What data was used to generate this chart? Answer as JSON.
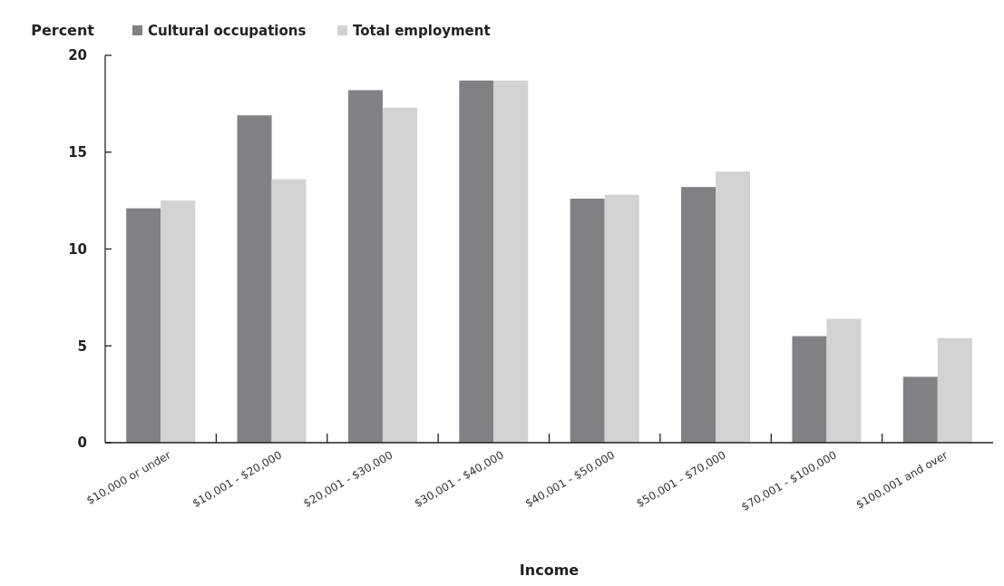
{
  "chart_data": {
    "type": "bar",
    "xlabel": "Income",
    "ylabel": "Percent",
    "categories": [
      "$10,000 or under",
      "$10,001 - $20,000",
      "$20,001 - $30,000",
      "$30,001 - $40,000",
      "$40,001 - $50,000",
      "$50,001 - $70,000",
      "$70,001 - $100,000",
      "$100,001 and over"
    ],
    "series": [
      {
        "name": "Cultural occupations",
        "color": "#808184",
        "values": [
          12.1,
          16.9,
          18.2,
          18.7,
          12.6,
          13.2,
          5.5,
          3.4
        ]
      },
      {
        "name": "Total employment",
        "color": "#d1d2d4",
        "values": [
          12.5,
          13.6,
          17.3,
          18.7,
          12.8,
          14.0,
          6.4,
          5.4
        ]
      }
    ],
    "ylim": [
      0,
      20
    ],
    "yticks": [
      0,
      5,
      10,
      15,
      20
    ],
    "grid": false,
    "legend": "top left"
  }
}
